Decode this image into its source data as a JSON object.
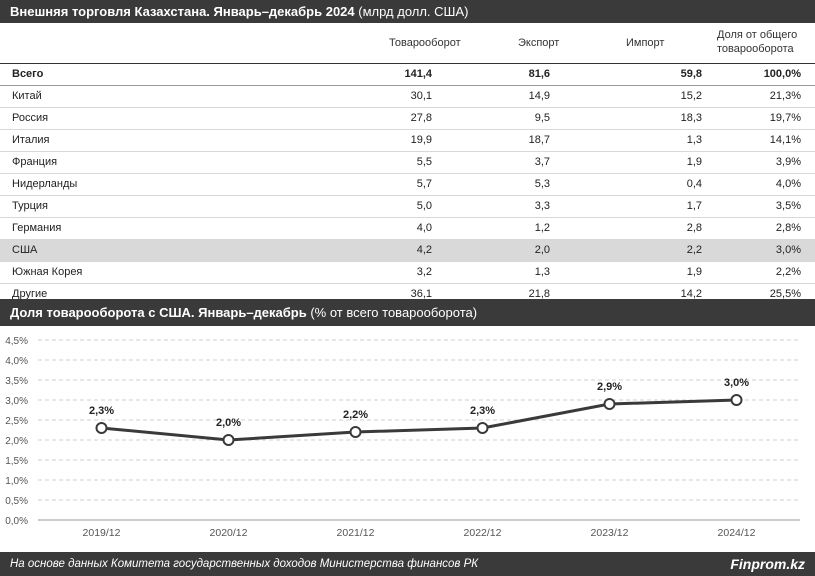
{
  "table": {
    "title_bold": "Внешняя торговля Казахстана. Январь–декабрь 2024",
    "title_rest": " (млрд долл. США)",
    "headers": [
      "Товарооборот",
      "Экспорт",
      "Импорт",
      "Доля от общего",
      "товарооборота"
    ],
    "rows": [
      {
        "country": "Всего",
        "turnover": "141,4",
        "export": "81,6",
        "import": "59,8",
        "share": "100,0%"
      },
      {
        "country": "Китай",
        "turnover": "30,1",
        "export": "14,9",
        "import": "15,2",
        "share": "21,3%"
      },
      {
        "country": "Россия",
        "turnover": "27,8",
        "export": "9,5",
        "import": "18,3",
        "share": "19,7%"
      },
      {
        "country": "Италия",
        "turnover": "19,9",
        "export": "18,7",
        "import": "1,3",
        "share": "14,1%"
      },
      {
        "country": "Франция",
        "turnover": "5,5",
        "export": "3,7",
        "import": "1,9",
        "share": "3,9%"
      },
      {
        "country": "Нидерланды",
        "turnover": "5,7",
        "export": "5,3",
        "import": "0,4",
        "share": "4,0%"
      },
      {
        "country": "Турция",
        "turnover": "5,0",
        "export": "3,3",
        "import": "1,7",
        "share": "3,5%"
      },
      {
        "country": "Германия",
        "turnover": "4,0",
        "export": "1,2",
        "import": "2,8",
        "share": "2,8%"
      },
      {
        "country": "США",
        "turnover": "4,2",
        "export": "2,0",
        "import": "2,2",
        "share": "3,0%"
      },
      {
        "country": "Южная Корея",
        "turnover": "3,2",
        "export": "1,3",
        "import": "1,9",
        "share": "2,2%"
      },
      {
        "country": "Другие",
        "turnover": "36,1",
        "export": "21,8",
        "import": "14,2",
        "share": "25,5%"
      }
    ]
  },
  "chart_title_bold": "Доля товарооборота с США. Январь–декабрь",
  "chart_title_rest": " (% от всего товарооборота)",
  "footer": {
    "source": "На основе данных Комитета государственных доходов Министерства финансов РК",
    "brand": "Finprom.kz"
  },
  "colors": {
    "bar": "#3a3a3a",
    "line": "#3a3a3a",
    "highlight": "#d9d9d9"
  },
  "chart_data": {
    "type": "line",
    "title": "Доля товарооборота с США. Январь–декабрь (% от всего товарооборота)",
    "x": [
      "2019/12",
      "2020/12",
      "2021/12",
      "2022/12",
      "2023/12",
      "2024/12"
    ],
    "values": [
      2.3,
      2.0,
      2.2,
      2.3,
      2.9,
      3.0
    ],
    "data_labels": [
      "2,3%",
      "2,0%",
      "2,2%",
      "2,3%",
      "2,9%",
      "3,0%"
    ],
    "ylim": [
      0,
      4.5
    ],
    "yticks": [
      "0,0%",
      "0,5%",
      "1,0%",
      "1,5%",
      "2,0%",
      "2,5%",
      "3,0%",
      "3,5%",
      "4,0%",
      "4,5%"
    ],
    "grid": true,
    "legend": "none"
  }
}
